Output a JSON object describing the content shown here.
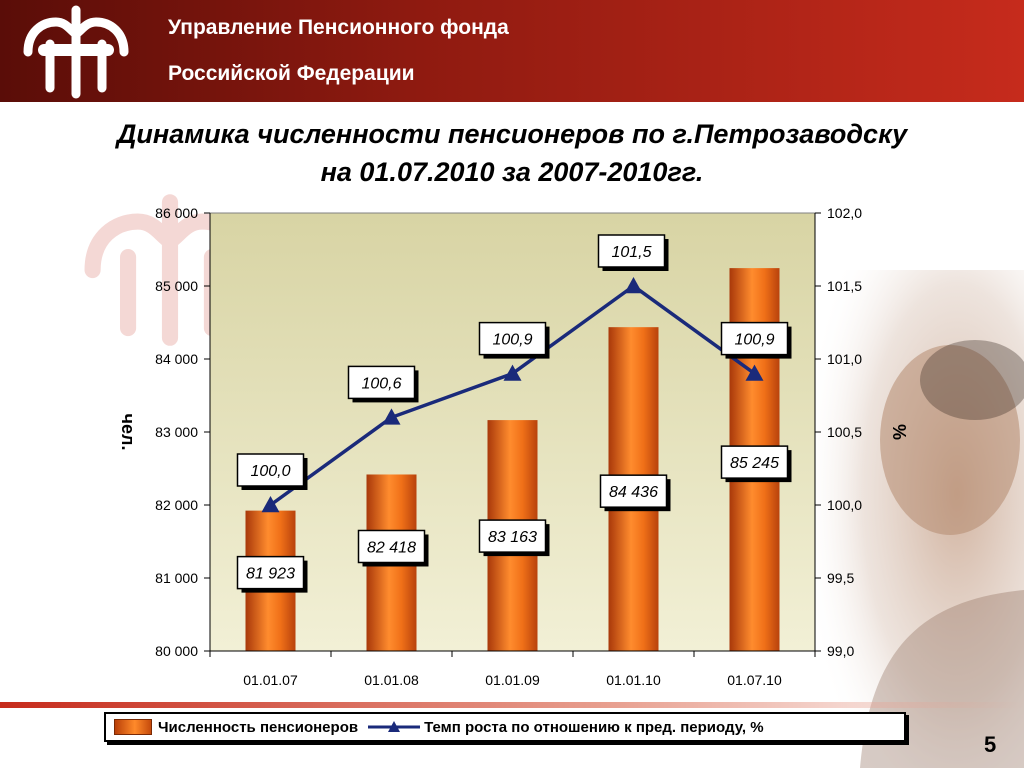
{
  "header": {
    "line1": "Управление Пенсионного фонда",
    "line2": "Российской Федерации",
    "logo_icon": "pfr-logo-icon"
  },
  "title": {
    "line1": "Динамика численности пенсионеров по г.Петрозаводску",
    "line2": "на 01.07.2010 за 2007-2010гг."
  },
  "chart_data": {
    "type": "bar",
    "categories": [
      "01.01.07",
      "01.01.08",
      "01.01.09",
      "01.01.10",
      "01.07.10"
    ],
    "series": [
      {
        "name": "Численность пенсионеров",
        "type": "bar",
        "axis": "left",
        "values": [
          81923,
          82418,
          83163,
          84436,
          85245
        ],
        "labels": [
          "81 923",
          "82 418",
          "83 163",
          "84 436",
          "85 245"
        ],
        "color": "#e8620f"
      },
      {
        "name": "Темп роста по отношению к пред. периоду, %",
        "type": "line",
        "axis": "right",
        "values": [
          100.0,
          100.6,
          100.9,
          101.5,
          100.9
        ],
        "labels": [
          "100,0",
          "100,6",
          "100,9",
          "101,5",
          "100,9"
        ],
        "color": "#1a2a7a"
      }
    ],
    "ylabel": "чел.",
    "y2label": "%",
    "ylim": [
      80000,
      86000
    ],
    "y2lim": [
      99.0,
      102.0
    ],
    "yticks": [
      "80 000",
      "81 000",
      "82 000",
      "83 000",
      "84 000",
      "85 000",
      "86 000"
    ],
    "y2ticks": [
      "99,0",
      "99,5",
      "100,0",
      "100,5",
      "101,0",
      "101,5",
      "102,0"
    ],
    "grid": false,
    "legend": "bottom",
    "plot_background": "#e8e4b4"
  },
  "page_number": "5"
}
